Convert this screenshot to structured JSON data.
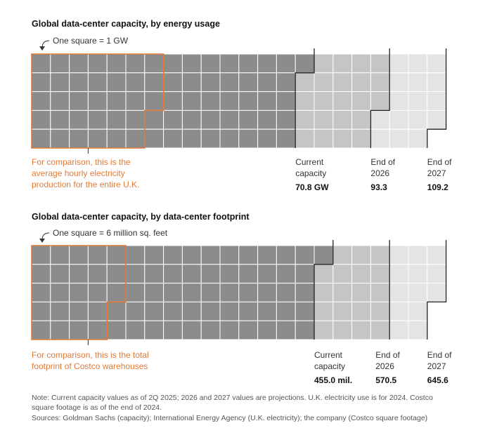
{
  "colors": {
    "current": "#8c8c8c",
    "end_2026": "#c5c5c5",
    "end_2027": "#e4e4e4",
    "grid": "#ffffff",
    "comparison": "#e07b39",
    "divider": "#222222"
  },
  "chart_data": [
    {
      "type": "waffle",
      "title": "Global data-center capacity, by energy usage",
      "unit_label": "One square = 1 GW",
      "rows": 5,
      "comparison": {
        "lines": [
          "For comparison, this is the",
          "average hourly electricity",
          "production for the entire U.K."
        ],
        "value": 33
      },
      "milestones": [
        {
          "label_lines": [
            "Current",
            "capacity"
          ],
          "value_text": "70.8 GW",
          "value": 70.8,
          "color": "current"
        },
        {
          "label_lines": [
            "End of",
            "2026"
          ],
          "value_text": "93.3",
          "value": 93.3,
          "color": "end_2026"
        },
        {
          "label_lines": [
            "End of",
            "2027"
          ],
          "value_text": "109.2",
          "value": 109.2,
          "color": "end_2027"
        }
      ]
    },
    {
      "type": "waffle",
      "title": "Global data-center capacity, by data-center footprint",
      "unit_label": "One square = 6 million sq. feet",
      "rows": 5,
      "comparison": {
        "lines": [
          "For comparison, this is the total",
          "footprint of Costco warehouses"
        ],
        "value": 23
      },
      "milestones": [
        {
          "label_lines": [
            "Current",
            "capacity"
          ],
          "value_text": "455.0 mil.",
          "value": 455.0,
          "per_square": 6,
          "color": "current"
        },
        {
          "label_lines": [
            "End of",
            "2026"
          ],
          "value_text": "570.5",
          "value": 570.5,
          "per_square": 6,
          "color": "end_2026"
        },
        {
          "label_lines": [
            "End of",
            "2027"
          ],
          "value_text": "645.6",
          "value": 645.6,
          "per_square": 6,
          "color": "end_2027"
        }
      ]
    }
  ],
  "notes": [
    "Note: Current capacity values as of 2Q 2025; 2026 and 2027 values are projections. U.K. electricity use is for 2024. Costco",
    "square footage is as of the end of 2024.",
    "Sources: Goldman Sachs (capacity); International Energy Agency (U.K. electricity); the company (Costco square footage)"
  ]
}
